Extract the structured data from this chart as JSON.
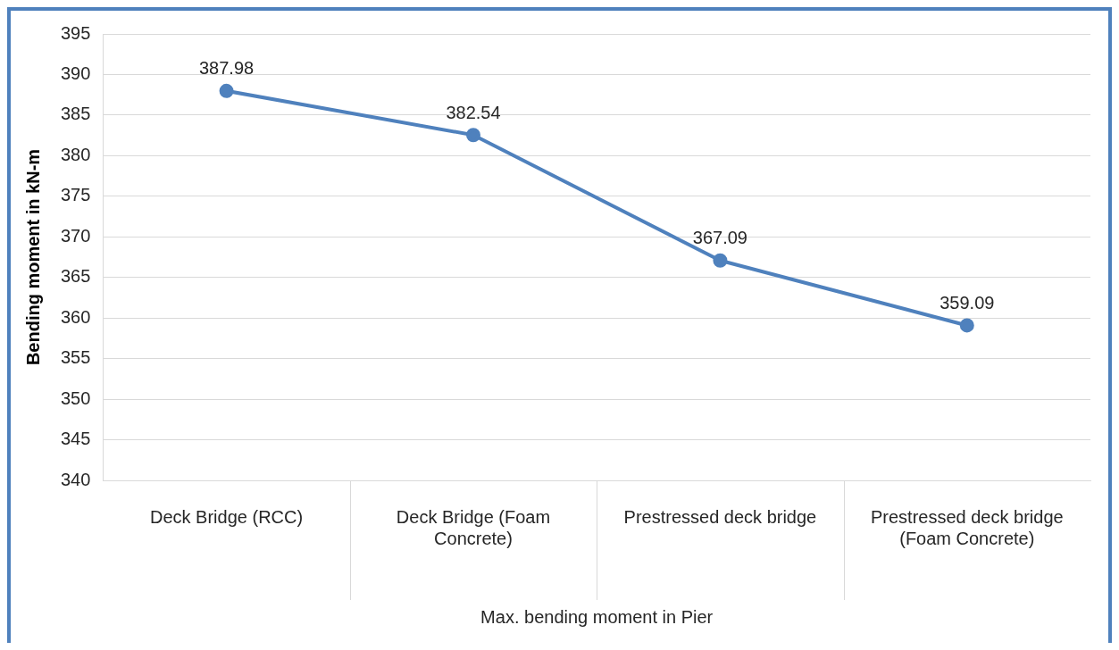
{
  "chart_data": {
    "type": "line",
    "xlabel": "Max. bending moment in Pier",
    "ylabel": "Bending moment in kN-m",
    "categories": [
      "Deck Bridge (RCC)",
      "Deck Bridge (Foam Concrete)",
      "Prestressed deck bridge",
      "Prestressed deck bridge (Foam Concrete)"
    ],
    "series": [
      {
        "color": "#4f81bd",
        "values": [
          387.98,
          382.54,
          367.09,
          359.09
        ]
      }
    ],
    "ylim": [
      340,
      395
    ],
    "yticks": [
      340,
      345,
      350,
      355,
      360,
      365,
      370,
      375,
      380,
      385,
      390,
      395
    ],
    "grid": "y",
    "marker": "circle",
    "line_style": "solid",
    "data_labels": true,
    "legend": false
  }
}
